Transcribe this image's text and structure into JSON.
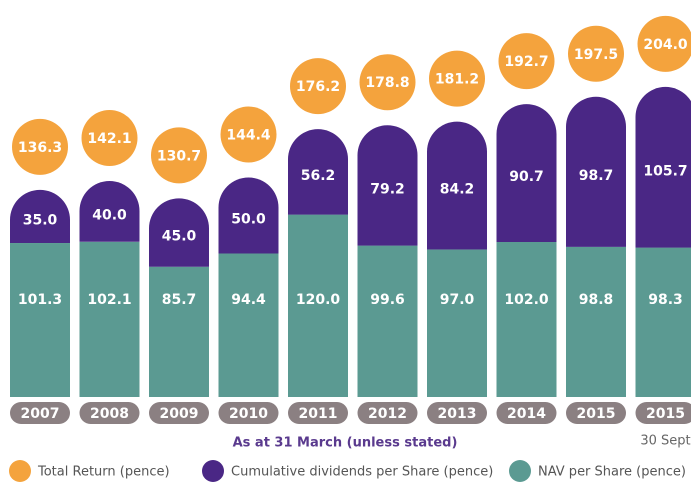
{
  "chart_data": {
    "type": "stacked-pill-bar",
    "categories": [
      "2007",
      "2008",
      "2009",
      "2010",
      "2011",
      "2012",
      "2013",
      "2014",
      "2015",
      "2015"
    ],
    "category_notes": [
      null,
      null,
      null,
      null,
      null,
      null,
      null,
      null,
      null,
      "30 Sept"
    ],
    "x_label": "As at 31 March (unless stated)",
    "series": [
      {
        "name": "NAV per Share (pence)",
        "color": "#5b9a92",
        "values": [
          101.3,
          102.1,
          85.7,
          94.4,
          120,
          99.6,
          97,
          102,
          98.8,
          98.3
        ],
        "value_labels": [
          "101.3",
          "102.1",
          "85.7",
          "94.4",
          "120.0",
          "99.6",
          "97.0",
          "102.0",
          "98.8",
          "98.3"
        ]
      },
      {
        "name": "Cumulative dividends per Share (pence)",
        "color": "#4a2785",
        "values": [
          35,
          40,
          45,
          50,
          56.2,
          79.2,
          84.2,
          90.7,
          98.7,
          105.7
        ],
        "value_labels": [
          "35.0",
          "40.0",
          "45.0",
          "50.0",
          "56.2",
          "79.2",
          "84.2",
          "90.7",
          "98.7",
          "105.7"
        ]
      }
    ],
    "total": {
      "name": "Total Return (pence)",
      "color": "#f4a33d",
      "values": [
        136.3,
        142.1,
        130.7,
        144.4,
        176.2,
        178.8,
        181.2,
        192.7,
        197.5,
        204
      ],
      "value_labels": [
        "136.3",
        "142.1",
        "130.7",
        "144.4",
        "176.2",
        "178.8",
        "181.2",
        "192.7",
        "197.5",
        "204.0"
      ]
    },
    "legend_order": [
      "total",
      1,
      0
    ],
    "category_label_color": "#8b8082"
  }
}
